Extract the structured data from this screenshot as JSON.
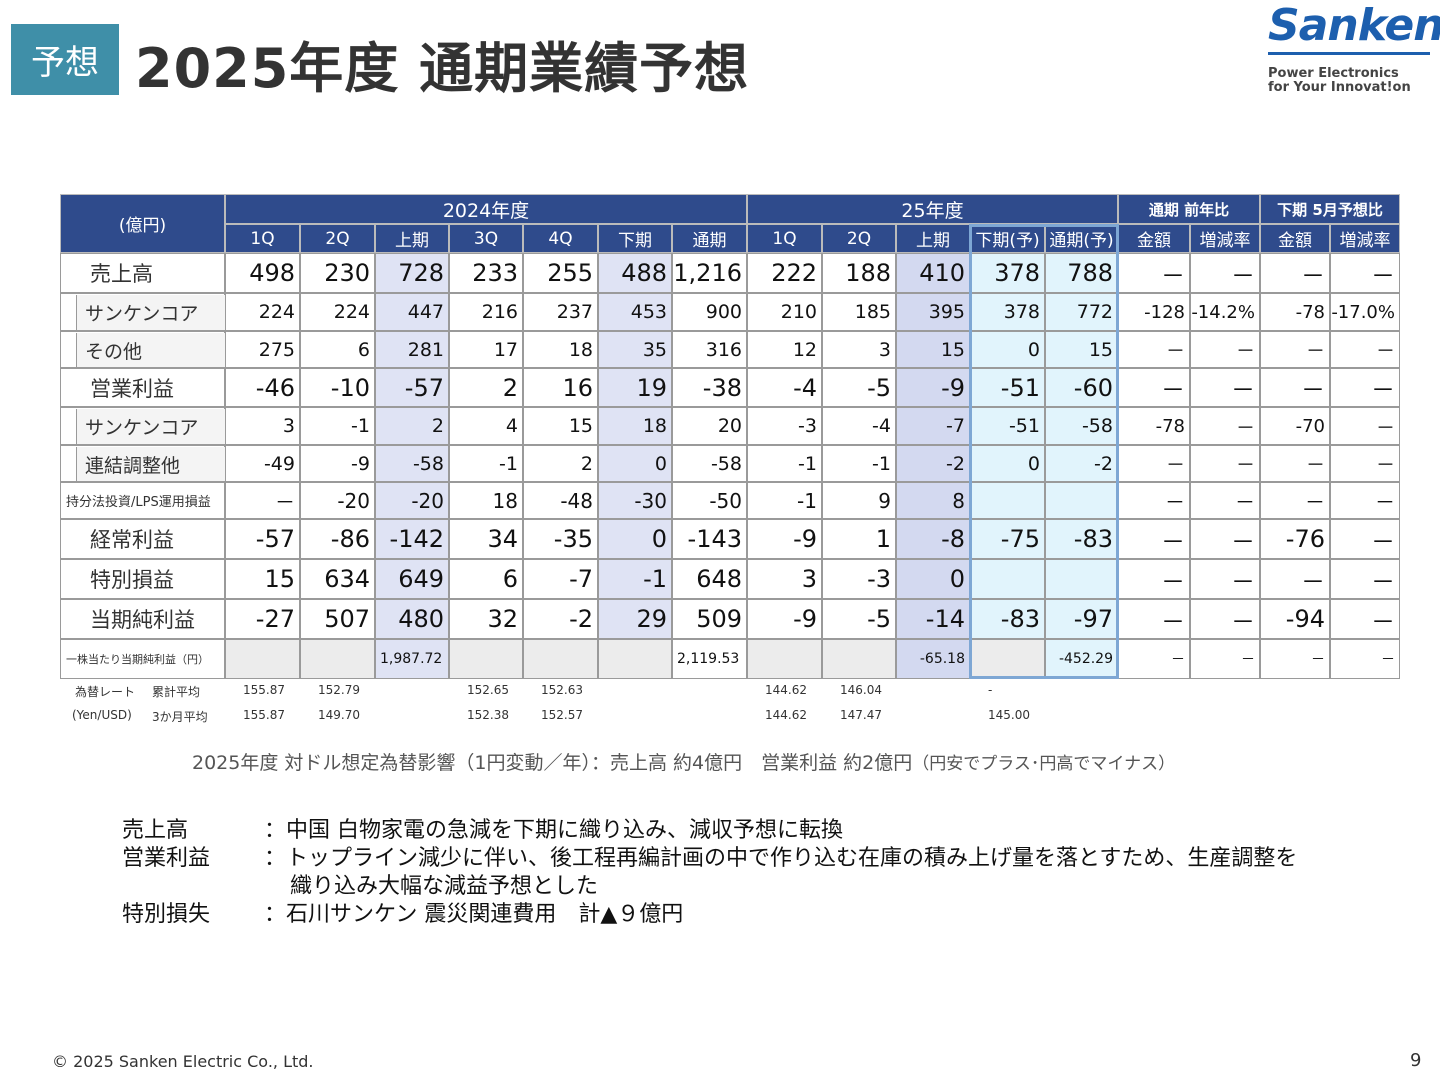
{
  "header": {
    "badge": "予想",
    "title": "2025年度  通期業績予想",
    "logo": {
      "name": "Sanken",
      "tagline1": "Power Electronics",
      "tagline2": "for Your Innovat!on"
    }
  },
  "table": {
    "unit": "(億円)",
    "groups": [
      "2024年度",
      "25年度",
      "通期 前年比",
      "下期 5月予想比"
    ],
    "columns": [
      "1Q",
      "2Q",
      "上期",
      "3Q",
      "4Q",
      "下期",
      "通期",
      "1Q",
      "2Q",
      "上期",
      "下期(予)",
      "通期(予)",
      "金額",
      "増減率",
      "金額",
      "増減率"
    ],
    "rows": [
      {
        "label": "売上高",
        "cells": [
          "498",
          "230",
          "728",
          "233",
          "255",
          "488",
          "1,216",
          "222",
          "188",
          "410",
          "378",
          "788",
          "－",
          "－",
          "－",
          "－"
        ]
      },
      {
        "label": "サンケンコア",
        "cells": [
          "224",
          "224",
          "447",
          "216",
          "237",
          "453",
          "900",
          "210",
          "185",
          "395",
          "378",
          "772",
          "-128",
          "-14.2%",
          "-78",
          "-17.0%"
        ]
      },
      {
        "label": "その他",
        "cells": [
          "275",
          "6",
          "281",
          "17",
          "18",
          "35",
          "316",
          "12",
          "3",
          "15",
          "0",
          "15",
          "－",
          "－",
          "－",
          "－"
        ]
      },
      {
        "label": "営業利益",
        "cells": [
          "-46",
          "-10",
          "-57",
          "2",
          "16",
          "19",
          "-38",
          "-4",
          "-5",
          "-9",
          "-51",
          "-60",
          "－",
          "－",
          "－",
          "－"
        ]
      },
      {
        "label": "サンケンコア",
        "cells": [
          "3",
          "-1",
          "2",
          "4",
          "15",
          "18",
          "20",
          "-3",
          "-4",
          "-7",
          "-51",
          "-58",
          "-78",
          "－",
          "-70",
          "－"
        ]
      },
      {
        "label": "連結調整他",
        "cells": [
          "-49",
          "-9",
          "-58",
          "-1",
          "2",
          "0",
          "-58",
          "-1",
          "-1",
          "-2",
          "0",
          "-2",
          "－",
          "－",
          "－",
          "－"
        ]
      },
      {
        "label": "持分法投資/LPS運用損益",
        "cells": [
          "－",
          "-20",
          "-20",
          "18",
          "-48",
          "-30",
          "-50",
          "-1",
          "9",
          "8",
          null,
          null,
          "－",
          "－",
          "－",
          "－"
        ]
      },
      {
        "label": "経常利益",
        "cells": [
          "-57",
          "-86",
          "-142",
          "34",
          "-35",
          "0",
          "-143",
          "-9",
          "1",
          "-8",
          "-75",
          "-83",
          "－",
          "－",
          "-76",
          "－"
        ]
      },
      {
        "label": "特別損益",
        "cells": [
          "15",
          "634",
          "649",
          "6",
          "-7",
          "-1",
          "648",
          "3",
          "-3",
          "0",
          null,
          null,
          "－",
          "－",
          "－",
          "－"
        ]
      },
      {
        "label": "当期純利益",
        "cells": [
          "-27",
          "507",
          "480",
          "32",
          "-2",
          "29",
          "509",
          "-9",
          "-5",
          "-14",
          "-83",
          "-97",
          "－",
          "－",
          "-94",
          "－"
        ]
      },
      {
        "label": "一株当たり当期純利益（円）",
        "cells": [
          null,
          null,
          "1,987.72",
          null,
          null,
          null,
          "2,119.53",
          null,
          null,
          "-65.18",
          null,
          "-452.29",
          "－",
          "－",
          "－",
          "－"
        ]
      }
    ]
  },
  "fx": [
    {
      "label": "為替レート",
      "sublabel": "累計平均",
      "cells": [
        "155.87",
        "152.79",
        null,
        "152.65",
        "152.63",
        null,
        null,
        "144.62",
        "146.04",
        null,
        "-",
        null
      ]
    },
    {
      "label": "(Yen/USD)",
      "sublabel": "3か月平均",
      "cells": [
        "155.87",
        "149.70",
        null,
        "152.38",
        "152.57",
        null,
        null,
        "144.62",
        "147.47",
        null,
        "145.00",
        null
      ]
    }
  ],
  "note": {
    "main": "2025年度 対ドル想定為替影響（1円変動／年）：売上高 約4億円　営業利益 約2億円",
    "sub": "（円安でプラス･円高でマイナス）"
  },
  "bullets": [
    {
      "label": "売上高",
      "lines": [
        "：中国 白物家電の急減を下期に織り込み、減収予想に転換"
      ]
    },
    {
      "label": "営業利益",
      "lines": [
        "：トップライン減少に伴い、後工程再編計画の中で作り込む在庫の積み上げ量を落とすため、生産調整を",
        "織り込み大幅な減益予想とした"
      ]
    },
    {
      "label": "特別損失",
      "lines": [
        "：石川サンケン 震災関連費用　計▲９億円"
      ]
    }
  ],
  "footer": {
    "copyright": "© 2025  Sanken Electric Co., Ltd.",
    "page": "9"
  }
}
